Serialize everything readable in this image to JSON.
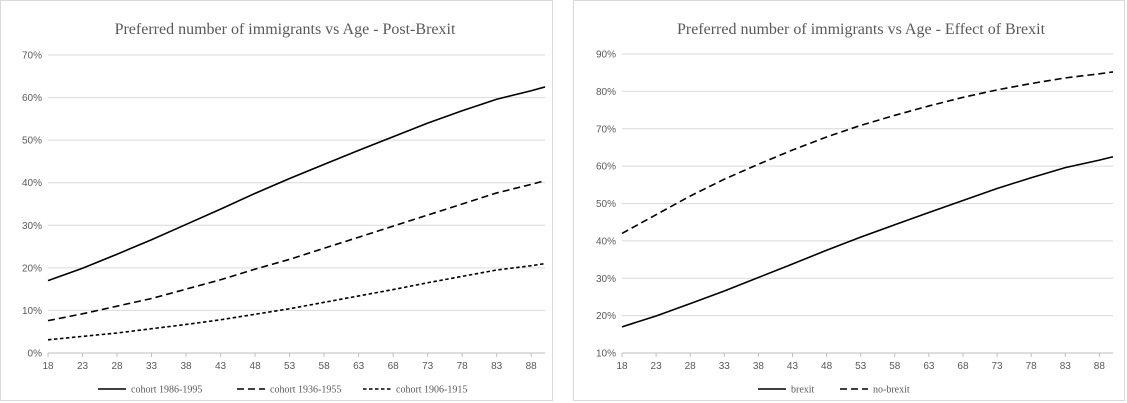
{
  "chart_data": [
    {
      "type": "line",
      "title": "Preferred number of immigrants  vs Age  - Post-Brexit",
      "xlabel": "",
      "ylabel": "",
      "x_ticks": [
        "18",
        "23",
        "28",
        "33",
        "38",
        "43",
        "48",
        "53",
        "58",
        "63",
        "68",
        "73",
        "78",
        "83",
        "88"
      ],
      "x_range": [
        18,
        90
      ],
      "ylim": [
        0,
        70
      ],
      "y_ticks": [
        "0%",
        "10%",
        "20%",
        "30%",
        "40%",
        "50%",
        "60%",
        "70%"
      ],
      "y_tick_values": [
        0,
        10,
        20,
        30,
        40,
        50,
        60,
        70
      ],
      "grid": "horizontal",
      "legend_position": "bottom",
      "series": [
        {
          "name": "cohort 1986-1995",
          "dash": "solid",
          "x": [
            18,
            23,
            28,
            33,
            38,
            43,
            48,
            53,
            58,
            63,
            68,
            73,
            78,
            83,
            88,
            90
          ],
          "values": [
            17.0,
            19.9,
            23.2,
            26.6,
            30.2,
            33.8,
            37.5,
            41.0,
            44.3,
            47.6,
            50.8,
            54.0,
            56.9,
            59.6,
            61.6,
            62.5
          ]
        },
        {
          "name": "cohort 1936-1955",
          "dash": "long",
          "x": [
            18,
            23,
            28,
            33,
            38,
            43,
            48,
            53,
            58,
            63,
            68,
            73,
            78,
            83,
            88,
            90
          ],
          "values": [
            7.6,
            9.2,
            11.0,
            12.8,
            15.0,
            17.2,
            19.7,
            22.0,
            24.6,
            27.2,
            29.8,
            32.4,
            35.0,
            37.6,
            39.6,
            40.5
          ]
        },
        {
          "name": "cohort 1906-1915",
          "dash": "short",
          "x": [
            18,
            23,
            28,
            33,
            38,
            43,
            48,
            53,
            58,
            63,
            68,
            73,
            78,
            83,
            88,
            90
          ],
          "values": [
            3.1,
            3.9,
            4.7,
            5.7,
            6.7,
            7.8,
            9.1,
            10.4,
            11.9,
            13.4,
            14.9,
            16.5,
            18.0,
            19.5,
            20.5,
            21.0
          ]
        }
      ]
    },
    {
      "type": "line",
      "title": "Preferred number of immigrants  vs Age  - Effect of Brexit",
      "xlabel": "",
      "ylabel": "",
      "x_ticks": [
        "18",
        "23",
        "28",
        "33",
        "38",
        "43",
        "48",
        "53",
        "58",
        "63",
        "68",
        "73",
        "78",
        "83",
        "88"
      ],
      "x_range": [
        18,
        90
      ],
      "ylim": [
        10,
        90
      ],
      "y_ticks": [
        "10%",
        "20%",
        "30%",
        "40%",
        "50%",
        "60%",
        "70%",
        "80%",
        "90%"
      ],
      "y_tick_values": [
        10,
        20,
        30,
        40,
        50,
        60,
        70,
        80,
        90
      ],
      "grid": "horizontal",
      "legend_position": "bottom",
      "series": [
        {
          "name": "brexit",
          "dash": "solid",
          "x": [
            18,
            23,
            28,
            33,
            38,
            43,
            48,
            53,
            58,
            63,
            68,
            73,
            78,
            83,
            88,
            90
          ],
          "values": [
            17.0,
            19.9,
            23.2,
            26.6,
            30.2,
            33.8,
            37.5,
            41.0,
            44.3,
            47.6,
            50.8,
            54.0,
            56.9,
            59.6,
            61.6,
            62.5
          ]
        },
        {
          "name": "no-brexit",
          "dash": "long",
          "x": [
            18,
            23,
            28,
            33,
            38,
            43,
            48,
            53,
            58,
            63,
            68,
            73,
            78,
            83,
            88,
            90
          ],
          "values": [
            42.0,
            47.0,
            52.0,
            56.5,
            60.5,
            64.3,
            67.8,
            70.9,
            73.6,
            76.1,
            78.4,
            80.4,
            82.1,
            83.6,
            84.7,
            85.2
          ]
        }
      ]
    }
  ]
}
